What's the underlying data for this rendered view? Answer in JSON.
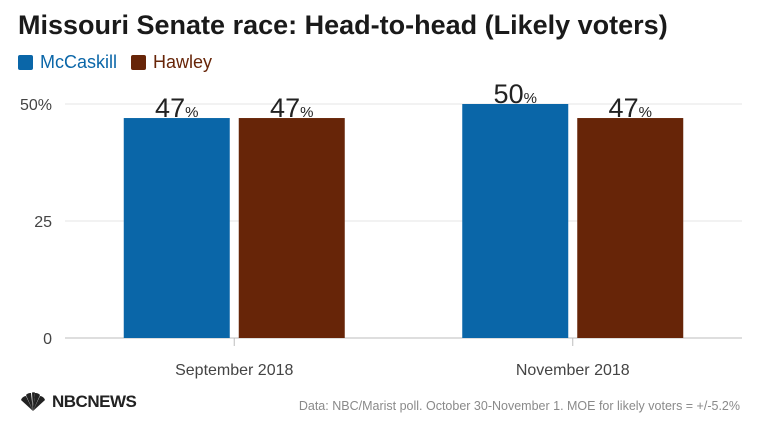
{
  "title": "Missouri Senate race: Head-to-head (Likely voters)",
  "source": "Data: NBC/Marist poll. October 30-November 1. MOE for likely voters = +/-5.2%",
  "logo": {
    "text": "NBCNEWS",
    "icon": "nbc-peacock-icon"
  },
  "colors": {
    "mccaskill": "#0a66a8",
    "hawley": "#672508"
  },
  "chart_data": {
    "type": "bar",
    "title": "Missouri Senate race: Head-to-head (Likely voters)",
    "categories": [
      "September 2018",
      "November 2018"
    ],
    "series": [
      {
        "name": "McCaskill",
        "values": [
          47,
          50
        ],
        "color": "#0a66a8"
      },
      {
        "name": "Hawley",
        "values": [
          47,
          47
        ],
        "color": "#672508"
      }
    ],
    "value_suffix": "%",
    "ylim": [
      0,
      50
    ],
    "yticks": [
      "0",
      "25",
      "50%"
    ],
    "ytick_values": [
      0,
      25,
      50
    ],
    "grid": true,
    "legend": "top-left"
  }
}
